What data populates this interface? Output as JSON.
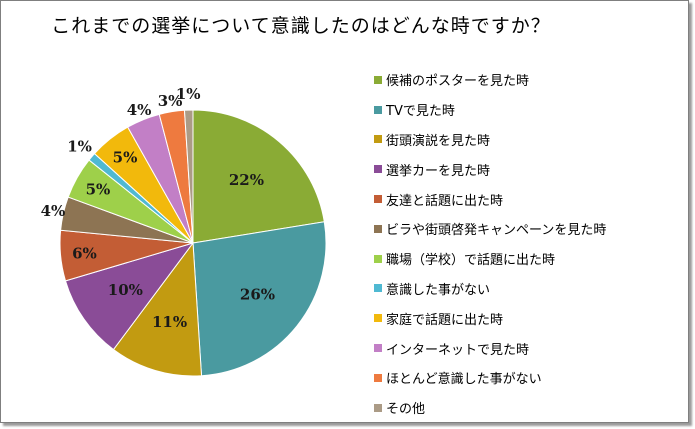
{
  "chart_data": {
    "type": "pie",
    "title": "これまでの選挙について意識したのはどんな時ですか？",
    "legend_position": "right",
    "slices": [
      {
        "name": "候補のポスターを見た時",
        "value": 22,
        "label": "22%",
        "color": "#8aab35"
      },
      {
        "name": "TVで見た時",
        "value": 26,
        "label": "26%",
        "color": "#4a9aa0"
      },
      {
        "name": "街頭演説を見た時",
        "value": 11,
        "label": "11%",
        "color": "#c29b11"
      },
      {
        "name": "選挙カーを見た時",
        "value": 10,
        "label": "10%",
        "color": "#8a4c97"
      },
      {
        "name": "友達と話題に出た時",
        "value": 6,
        "label": "6%",
        "color": "#c35d35"
      },
      {
        "name": "ビラや街頭啓発キャンペーンを見た時",
        "value": 4,
        "label": "4%",
        "color": "#8d7453"
      },
      {
        "name": "職場（学校）で話題に出た時",
        "value": 5,
        "label": "5%",
        "color": "#9ed04a"
      },
      {
        "name": "意識した事がない",
        "value": 1,
        "label": "1%",
        "color": "#4fb9d2"
      },
      {
        "name": "家庭で話題に出た時",
        "value": 5,
        "label": "5%",
        "color": "#f2b90c"
      },
      {
        "name": "インターネットで見た時",
        "value": 4,
        "label": "4%",
        "color": "#c27fc6"
      },
      {
        "name": "ほとんど意識した事がない",
        "value": 3,
        "label": "3%",
        "color": "#ee7a3f"
      },
      {
        "name": "その他",
        "value": 1,
        "label": "1%",
        "color": "#ab9b86"
      }
    ]
  }
}
